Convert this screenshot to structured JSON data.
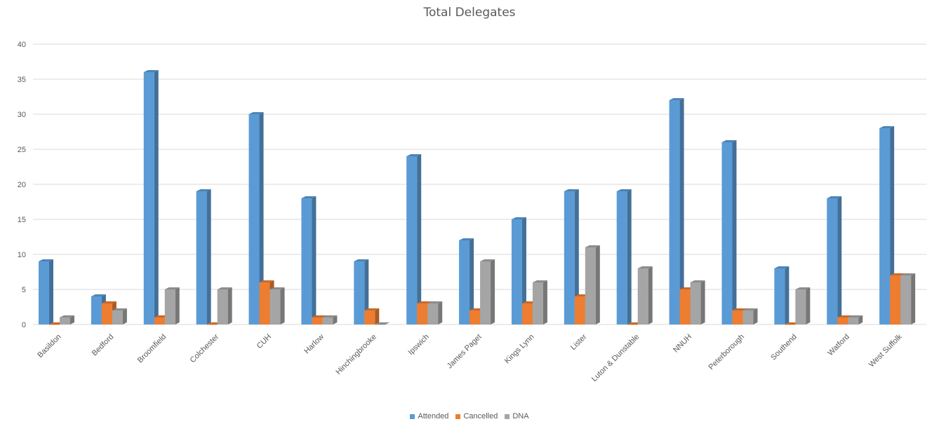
{
  "chart_data": {
    "type": "bar",
    "title": "Total Delegates",
    "xlabel": "",
    "ylabel": "",
    "ylim": [
      0,
      40
    ],
    "yticks": [
      0,
      5,
      10,
      15,
      20,
      25,
      30,
      35,
      40
    ],
    "grid": true,
    "legend_position": "bottom",
    "categories": [
      "Basildon",
      "Bedford",
      "Broomfield",
      "Colchester",
      "CUH",
      "Harlow",
      "Hinchingbrooke",
      "Ipswich",
      "James Paget",
      "Kings Lynn",
      "Lister",
      "Luton & Dunstable",
      "NNUH",
      "Peterborough",
      "Southend",
      "Watford",
      "West Suffolk"
    ],
    "series": [
      {
        "name": "Attended",
        "color": "#5B9BD5",
        "values": [
          9,
          4,
          36,
          19,
          30,
          18,
          9,
          24,
          12,
          15,
          19,
          19,
          32,
          26,
          8,
          18,
          28
        ]
      },
      {
        "name": "Cancelled",
        "color": "#ED7D31",
        "values": [
          0,
          3,
          1,
          0,
          6,
          1,
          2,
          3,
          2,
          3,
          4,
          0,
          5,
          2,
          0,
          1,
          7
        ]
      },
      {
        "name": "DNA",
        "color": "#A5A5A5",
        "values": [
          1,
          2,
          5,
          5,
          5,
          1,
          0,
          3,
          9,
          6,
          11,
          8,
          6,
          2,
          5,
          1,
          7
        ]
      }
    ]
  }
}
